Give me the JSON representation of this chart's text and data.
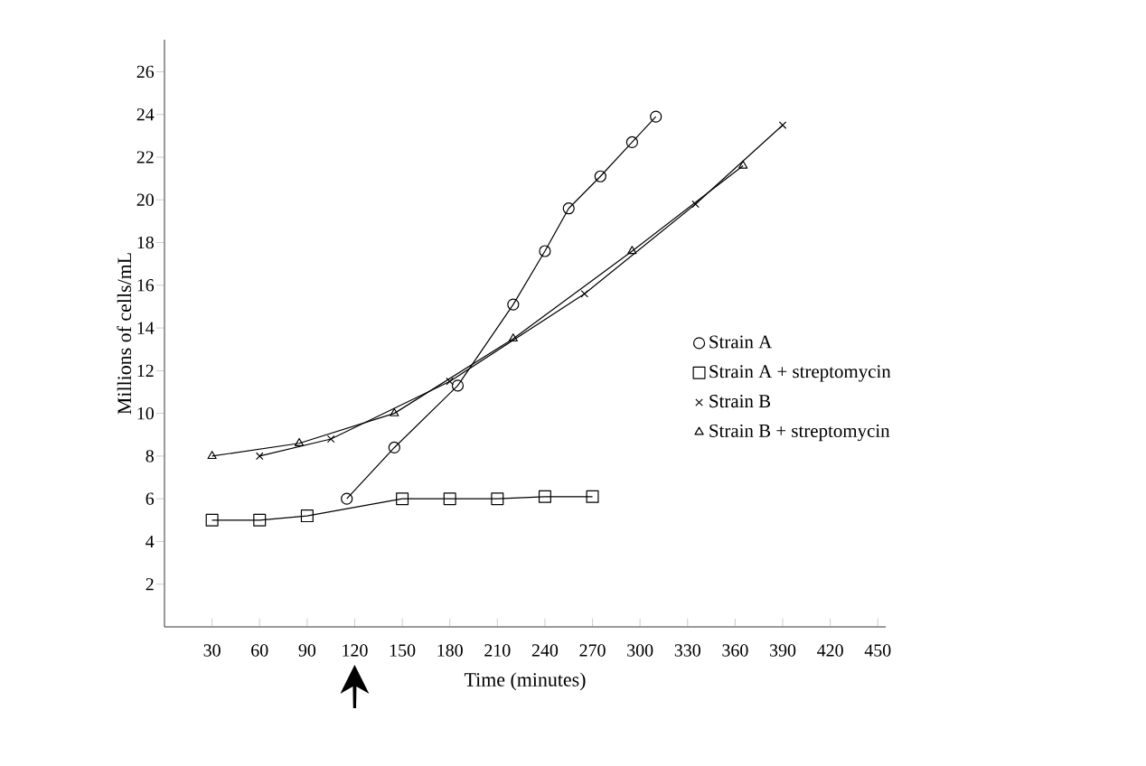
{
  "chart_data": {
    "type": "line",
    "xlabel": "Time (minutes)",
    "ylabel": "Millions of cells/mL",
    "series": [
      {
        "name": "Strain A",
        "color": "#000000",
        "marker": "circle",
        "x": [
          115,
          145,
          185,
          220,
          240,
          255,
          275,
          295,
          310
        ],
        "values": [
          6.0,
          8.4,
          11.3,
          15.1,
          17.6,
          19.6,
          21.1,
          22.7,
          23.9
        ]
      },
      {
        "name": "Strain A + streptomycin",
        "color": "#000000",
        "marker": "square",
        "x": [
          30,
          60,
          90,
          150,
          180,
          210,
          240,
          270
        ],
        "values": [
          5.0,
          5.0,
          5.2,
          6.0,
          6.0,
          6.0,
          6.1,
          6.1
        ]
      },
      {
        "name": "Strain B",
        "color": "#000000",
        "marker": "cross",
        "x": [
          60,
          105,
          180,
          265,
          335,
          390
        ],
        "values": [
          8.0,
          8.8,
          11.5,
          15.6,
          19.8,
          23.5
        ]
      },
      {
        "name": "Strain B + streptomycin",
        "color": "#000000",
        "marker": "triangle",
        "x": [
          30,
          85,
          145,
          220,
          295,
          365
        ],
        "values": [
          8.0,
          8.6,
          10.0,
          13.5,
          17.6,
          21.6
        ]
      }
    ],
    "xlim": [
      0,
      455
    ],
    "ylim": [
      0,
      27.5
    ],
    "xticks": [
      30,
      60,
      90,
      120,
      150,
      180,
      210,
      240,
      270,
      300,
      330,
      360,
      390,
      420,
      450
    ],
    "yticks": [
      2,
      4,
      6,
      8,
      10,
      12,
      14,
      16,
      18,
      20,
      22,
      24,
      26
    ],
    "grid": false,
    "legend": "right",
    "line_style": "solid"
  }
}
